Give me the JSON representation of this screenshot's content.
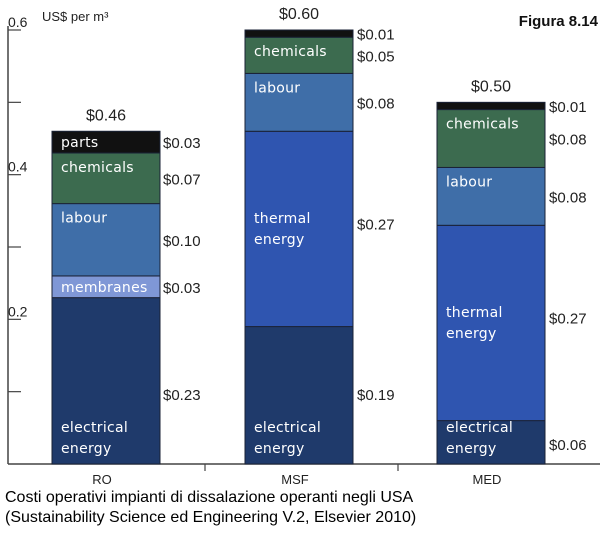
{
  "figure_label": "Figura 8.14",
  "caption": {
    "line1": "Costi operativi impianti di dissalazione operanti negli USA",
    "line2": "(Sustainability Science ed Engineering V.2, Elsevier 2010)"
  },
  "colors": {
    "electrical energy": "#1f3a6b",
    "membranes": "#7f97d6",
    "thermal energy": "#2f55b0",
    "labour": "#3f6ea8",
    "chemicals": "#3c6b4f",
    "parts": "#111111",
    "other": "#111111"
  },
  "chart_data": {
    "type": "bar",
    "stacked": true,
    "title": "",
    "xlabel": "",
    "ylabel": "US$ per m³",
    "ylim": [
      0,
      0.6
    ],
    "yticks": [
      0.2,
      0.4,
      0.6
    ],
    "ytick_labels": [
      "0.2",
      "0.4",
      "0.6"
    ],
    "categories": [
      "RO",
      "MSF",
      "MED"
    ],
    "bars": [
      {
        "category": "RO",
        "total_label": "$0.46",
        "segments": [
          {
            "name": "electrical energy",
            "label_lines": [
              "electrical",
              "energy"
            ],
            "value": 0.23,
            "value_label": "$0.23"
          },
          {
            "name": "membranes",
            "label_lines": [
              "membranes"
            ],
            "value": 0.03,
            "value_label": "$0.03"
          },
          {
            "name": "labour",
            "label_lines": [
              "labour"
            ],
            "value": 0.1,
            "value_label": "$0.10"
          },
          {
            "name": "chemicals",
            "label_lines": [
              "chemicals"
            ],
            "value": 0.07,
            "value_label": "$0.07"
          },
          {
            "name": "parts",
            "label_lines": [
              "parts"
            ],
            "value": 0.03,
            "value_label": "$0.03"
          }
        ]
      },
      {
        "category": "MSF",
        "total_label": "$0.60",
        "segments": [
          {
            "name": "electrical energy",
            "label_lines": [
              "electrical",
              "energy"
            ],
            "value": 0.19,
            "value_label": "$0.19"
          },
          {
            "name": "thermal energy",
            "label_lines": [
              "thermal",
              "energy"
            ],
            "value": 0.27,
            "value_label": "$0.27"
          },
          {
            "name": "labour",
            "label_lines": [
              "labour"
            ],
            "value": 0.08,
            "value_label": "$0.08"
          },
          {
            "name": "chemicals",
            "label_lines": [
              "chemicals"
            ],
            "value": 0.05,
            "value_label": "$0.05"
          },
          {
            "name": "other",
            "label_lines": [],
            "value": 0.01,
            "value_label": "$0.01"
          }
        ]
      },
      {
        "category": "MED",
        "total_label": "$0.50",
        "segments": [
          {
            "name": "electrical energy",
            "label_lines": [
              "electrical",
              "energy"
            ],
            "value": 0.06,
            "value_label": "$0.06"
          },
          {
            "name": "thermal energy",
            "label_lines": [
              "thermal",
              "energy"
            ],
            "value": 0.27,
            "value_label": "$0.27"
          },
          {
            "name": "labour",
            "label_lines": [
              "labour"
            ],
            "value": 0.08,
            "value_label": "$0.08"
          },
          {
            "name": "chemicals",
            "label_lines": [
              "chemicals"
            ],
            "value": 0.08,
            "value_label": "$0.08"
          },
          {
            "name": "other",
            "label_lines": [],
            "value": 0.01,
            "value_label": "$0.01"
          }
        ]
      }
    ]
  }
}
